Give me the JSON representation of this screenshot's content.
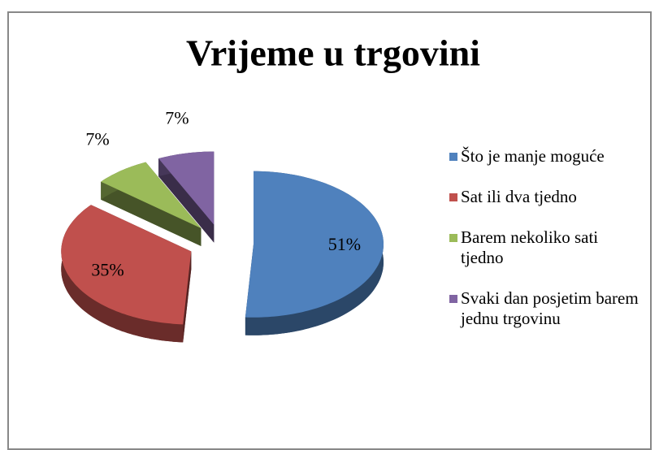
{
  "chart_data": {
    "type": "pie",
    "title": "Vrijeme u trgovini",
    "categories": [
      "Što je manje moguće",
      "Sat ili dva tjedno",
      "Barem nekoliko sati tjedno",
      "Svaki dan posjetim barem jednu trgovinu"
    ],
    "values": [
      51,
      35,
      7,
      7
    ],
    "value_labels": [
      "51%",
      "35%",
      "7%",
      "7%"
    ],
    "colors": [
      "#4f81bd",
      "#c0504d",
      "#9bbb59",
      "#8064a2"
    ],
    "legend": "right"
  }
}
